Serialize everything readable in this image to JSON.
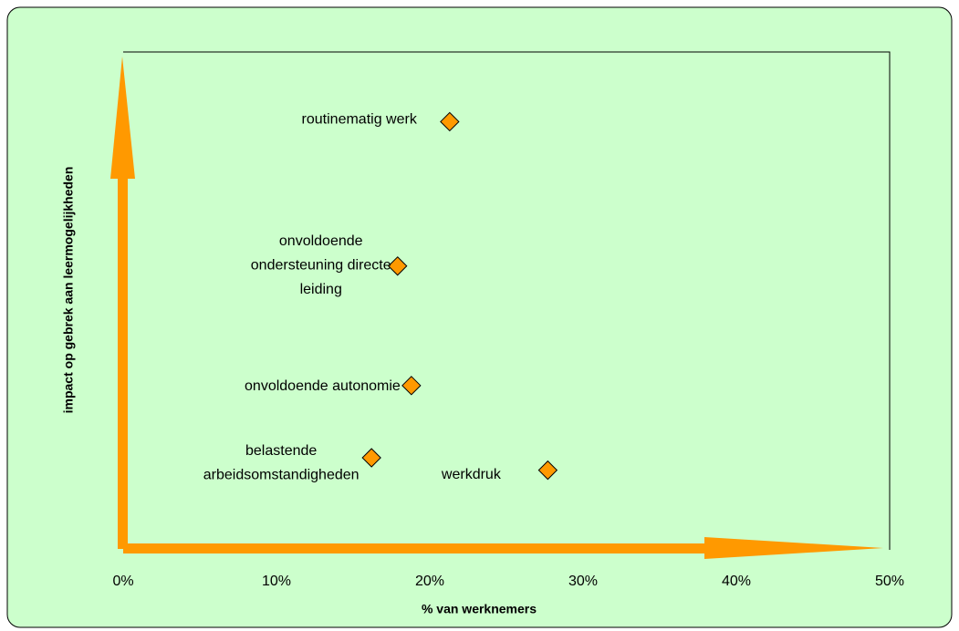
{
  "chart_data": {
    "type": "scatter",
    "xlabel": "% van werknemers",
    "ylabel": "impact op gebrek aan leermogelijkheden",
    "labels": [
      [
        "routinematig werk"
      ],
      [
        "onvoldoende",
        "ondersteuning directe",
        "leiding"
      ],
      [
        "onvoldoende autonomie"
      ],
      [
        "belastende",
        "arbeidsomstandigheden"
      ],
      [
        "werkdruk"
      ]
    ],
    "x": [
      21.3,
      17.9,
      18.8,
      16.2,
      27.7
    ],
    "values": [
      86,
      57,
      33,
      18.5,
      16
    ],
    "color": "#ff9900",
    "xlim": [
      0,
      50
    ],
    "ylim": [
      0,
      100
    ],
    "xticks": [
      {
        "value": 0,
        "label": "0%"
      },
      {
        "value": 10,
        "label": "10%"
      },
      {
        "value": 20,
        "label": "20%"
      },
      {
        "value": 30,
        "label": "30%"
      },
      {
        "value": 40,
        "label": "40%"
      },
      {
        "value": 50,
        "label": "50%"
      }
    ]
  }
}
